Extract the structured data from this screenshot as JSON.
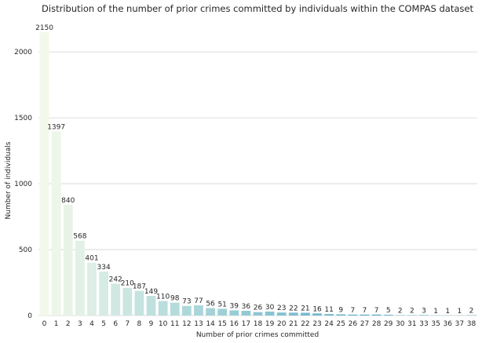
{
  "chart_data": {
    "type": "bar",
    "title": "Distribution of the number of prior crimes committed by individuals within the COMPAS dataset",
    "xlabel": "Number of prior crimes committed",
    "ylabel": "Number of individuals",
    "categories": [
      "0",
      "1",
      "2",
      "3",
      "4",
      "5",
      "6",
      "7",
      "8",
      "9",
      "10",
      "11",
      "12",
      "13",
      "14",
      "15",
      "16",
      "17",
      "18",
      "19",
      "20",
      "21",
      "22",
      "23",
      "24",
      "25",
      "26",
      "27",
      "28",
      "29",
      "30",
      "31",
      "33",
      "35",
      "36",
      "37",
      "38"
    ],
    "values": [
      2150,
      1397,
      840,
      568,
      401,
      334,
      242,
      210,
      187,
      149,
      110,
      98,
      73,
      77,
      56,
      51,
      39,
      36,
      26,
      30,
      23,
      22,
      21,
      16,
      11,
      9,
      7,
      7,
      7,
      5,
      2,
      2,
      3,
      1,
      1,
      1,
      2
    ],
    "ylim": [
      0,
      2257
    ],
    "yticks": [
      0,
      500,
      1000,
      1500,
      2000
    ],
    "grid": "horizontal",
    "palette": {
      "start": "#f2f9ea",
      "end": "#4ba6c4"
    },
    "background": "#ffffff"
  }
}
